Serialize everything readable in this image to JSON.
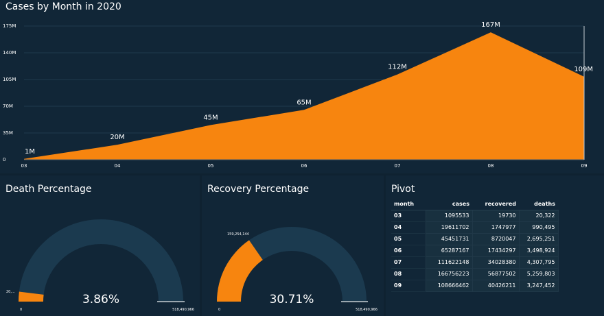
{
  "area_panel": {
    "title": "Cases by Month in 2020"
  },
  "chart_data": {
    "type": "area",
    "title": "Cases by Month in 2020",
    "x": [
      "03",
      "04",
      "05",
      "06",
      "07",
      "08",
      "09"
    ],
    "values": [
      1095533,
      19611702,
      45451731,
      65287167,
      111622148,
      166756223,
      108666462
    ],
    "data_labels": [
      "1M",
      "20M",
      "45M",
      "65M",
      "112M",
      "167M",
      "109M"
    ],
    "yticks": [
      "0",
      "35M",
      "70M",
      "105M",
      "140M",
      "175M"
    ],
    "ylim": [
      0,
      175000000
    ],
    "color": "#f7850f"
  },
  "death_gauge": {
    "title": "Death Percentage",
    "percent_label": "3.86%",
    "fraction": 0.0386,
    "min_label": "0",
    "max_label": "518,490,966",
    "value_label": "20,...",
    "fill_color": "#f7850f",
    "track_color": "#1b3a4f"
  },
  "recovery_gauge": {
    "title": "Recovery Percentage",
    "percent_label": "30.71%",
    "fraction": 0.3071,
    "min_label": "0",
    "max_label": "518,490,966",
    "value_label": "159,254,144",
    "fill_color": "#f7850f",
    "track_color": "#1b3a4f"
  },
  "pivot": {
    "title": "Pivot",
    "columns": [
      "month",
      "cases",
      "recovered",
      "deaths"
    ],
    "rows": [
      [
        "03",
        "1095533",
        "19730",
        "20,322"
      ],
      [
        "04",
        "19611702",
        "1747977",
        "990,495"
      ],
      [
        "05",
        "45451731",
        "8720047",
        "2,695,251"
      ],
      [
        "06",
        "65287167",
        "17434297",
        "3,498,924"
      ],
      [
        "07",
        "111622148",
        "34028380",
        "4,307,795"
      ],
      [
        "08",
        "166756223",
        "56877502",
        "5,259,803"
      ],
      [
        "09",
        "108666462",
        "40426211",
        "3,247,452"
      ]
    ]
  }
}
